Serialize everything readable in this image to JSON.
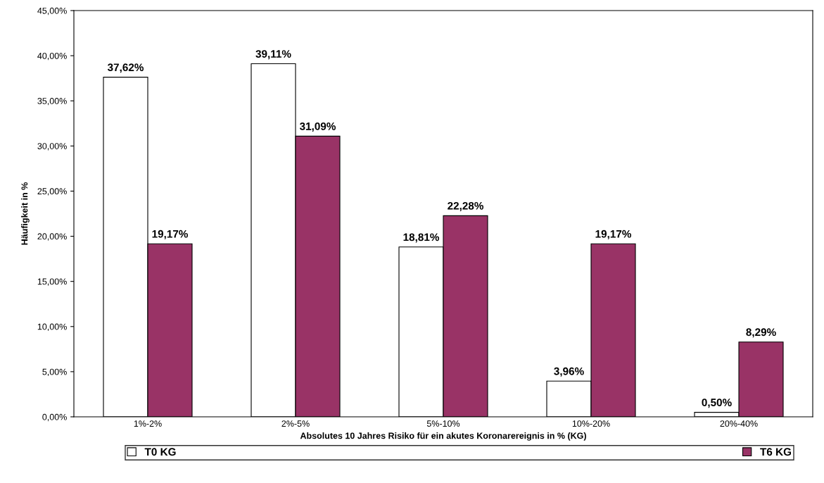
{
  "chart_data": {
    "type": "bar",
    "xlabel": "Absolutes 10 Jahres Risiko für ein akutes Koronarereignis in % (KG)",
    "ylabel": "Häufigkeit in %",
    "categories": [
      "1%-2%",
      "2%-5%",
      "5%-10%",
      "10%-20%",
      "20%-40%"
    ],
    "series": [
      {
        "name": "T0 KG",
        "color": "#ffffff",
        "values": [
          37.62,
          39.11,
          18.81,
          3.96,
          0.5
        ],
        "value_labels": [
          "37,62%",
          "39,11%",
          "18,81%",
          "3,96%",
          "0,50%"
        ]
      },
      {
        "name": "T6 KG",
        "color": "#993366",
        "values": [
          19.17,
          31.09,
          22.28,
          19.17,
          8.29
        ],
        "value_labels": [
          "19,17%",
          "31,09%",
          "22,28%",
          "19,17%",
          "8,29%"
        ]
      }
    ],
    "ylim": [
      0,
      45
    ],
    "yticks": [
      {
        "value": 0,
        "label": "0,00%"
      },
      {
        "value": 5,
        "label": "5,00%"
      },
      {
        "value": 10,
        "label": "10,00%"
      },
      {
        "value": 15,
        "label": "15,00%"
      },
      {
        "value": 20,
        "label": "20,00%"
      },
      {
        "value": 25,
        "label": "25,00%"
      },
      {
        "value": 30,
        "label": "30,00%"
      },
      {
        "value": 35,
        "label": "35,00%"
      },
      {
        "value": 40,
        "label": "40,00%"
      },
      {
        "value": 45,
        "label": "45,00%"
      }
    ],
    "grid": false,
    "legend": "bottom"
  }
}
